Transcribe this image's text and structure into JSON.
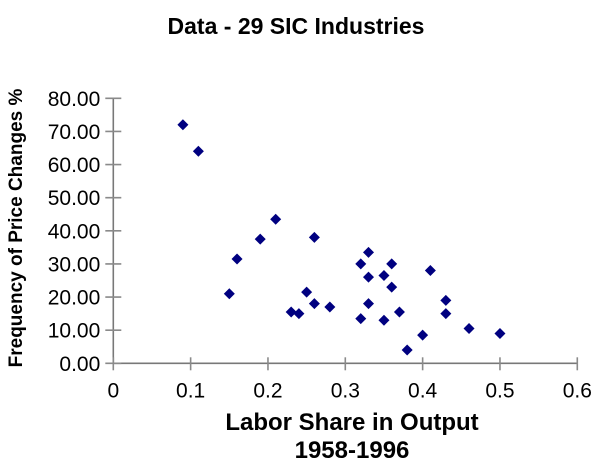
{
  "title": "Data - 29 SIC Industries",
  "chart_data": {
    "type": "scatter",
    "title": "Data - 29 SIC Industries",
    "xlabel": "Labor Share in Output",
    "xlabel_line2": "1958-1996",
    "ylabel": "Frequency of Price Changes %",
    "xlim": [
      0,
      0.6
    ],
    "ylim": [
      0,
      80
    ],
    "x_ticks": [
      0,
      0.1,
      0.2,
      0.3,
      0.4,
      0.5,
      0.6
    ],
    "x_tick_labels": [
      "0",
      "0.1",
      "0.2",
      "0.3",
      "0.4",
      "0.5",
      "0.6"
    ],
    "y_ticks": [
      0,
      10,
      20,
      30,
      40,
      50,
      60,
      70,
      80
    ],
    "y_tick_labels": [
      "0.00",
      "10.00",
      "20.00",
      "30.00",
      "40.00",
      "50.00",
      "60.00",
      "70.00",
      "80.00"
    ],
    "grid": false,
    "legend": false,
    "series_name": "29 SIC industries",
    "marker": {
      "shape": "diamond",
      "color": "#000080",
      "size": 11
    },
    "axis_color": "#787878",
    "tick_color": "#8a8a8a",
    "points": [
      [
        0.09,
        72
      ],
      [
        0.11,
        64
      ],
      [
        0.15,
        21
      ],
      [
        0.16,
        31.5
      ],
      [
        0.19,
        37.5
      ],
      [
        0.21,
        43.5
      ],
      [
        0.23,
        15.5
      ],
      [
        0.24,
        15
      ],
      [
        0.25,
        21.5
      ],
      [
        0.26,
        38
      ],
      [
        0.26,
        18
      ],
      [
        0.28,
        17
      ],
      [
        0.32,
        30
      ],
      [
        0.32,
        13.5
      ],
      [
        0.33,
        33.5
      ],
      [
        0.33,
        26
      ],
      [
        0.33,
        18
      ],
      [
        0.35,
        26.5
      ],
      [
        0.35,
        13
      ],
      [
        0.36,
        30
      ],
      [
        0.36,
        23
      ],
      [
        0.37,
        15.5
      ],
      [
        0.38,
        4
      ],
      [
        0.4,
        8.5
      ],
      [
        0.41,
        28
      ],
      [
        0.43,
        19
      ],
      [
        0.43,
        15
      ],
      [
        0.46,
        10.5
      ],
      [
        0.5,
        9
      ]
    ]
  }
}
